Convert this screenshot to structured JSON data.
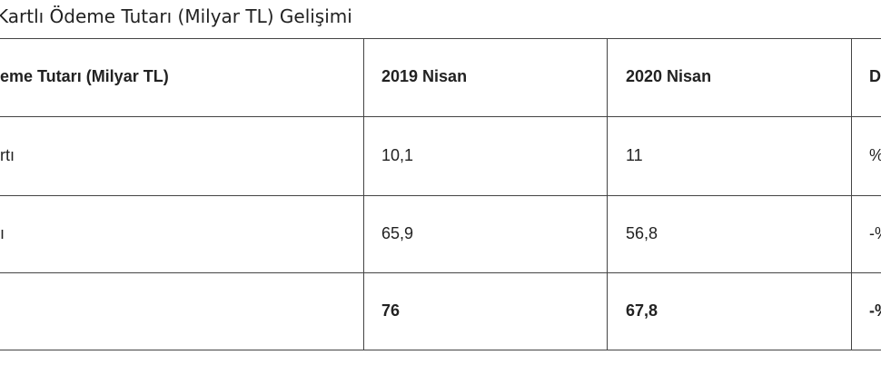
{
  "title": "Kartlı Ödeme Tutarı (Milyar TL) Gelişimi",
  "table": {
    "header": [
      "eme Tutarı (Milyar TL)",
      "2019 Nisan",
      "2020 Nisan",
      "D"
    ],
    "rows": [
      {
        "label": "rtı",
        "cells": [
          "10,1",
          "11",
          "%"
        ]
      },
      {
        "label": "ı",
        "cells": [
          "65,9",
          "56,8",
          "-%"
        ]
      },
      {
        "cells": [
          "76",
          "67,8",
          "-%"
        ],
        "bold": true
      }
    ]
  }
}
